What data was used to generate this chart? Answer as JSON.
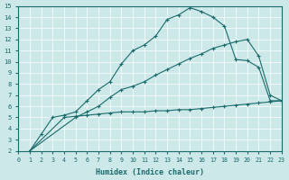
{
  "bg_color": "#cde8e8",
  "line_color": "#1a6b6b",
  "xlabel": "Humidex (Indice chaleur)",
  "xlim": [
    0,
    23
  ],
  "ylim": [
    2,
    15
  ],
  "xticks": [
    0,
    1,
    2,
    3,
    4,
    5,
    6,
    7,
    8,
    9,
    10,
    11,
    12,
    13,
    14,
    15,
    16,
    17,
    18,
    19,
    20,
    21,
    22,
    23
  ],
  "yticks": [
    2,
    3,
    4,
    5,
    6,
    7,
    8,
    9,
    10,
    11,
    12,
    13,
    14,
    15
  ],
  "line1_x": [
    1,
    2,
    3,
    4,
    5,
    6,
    7,
    8,
    9,
    10,
    11,
    12,
    13,
    14,
    15,
    16,
    17,
    18,
    19,
    20,
    21,
    22,
    23
  ],
  "line1_y": [
    2.0,
    3.5,
    5.0,
    5.2,
    5.5,
    6.5,
    7.5,
    8.2,
    9.8,
    11.0,
    11.5,
    12.3,
    13.8,
    14.2,
    14.85,
    14.5,
    14.0,
    13.2,
    10.2,
    10.1,
    9.5,
    6.5,
    6.5
  ],
  "line2_x": [
    1,
    5,
    6,
    7,
    8,
    9,
    10,
    11,
    12,
    13,
    14,
    15,
    16,
    17,
    18,
    19,
    20,
    21,
    22,
    23
  ],
  "line2_y": [
    2.0,
    5.0,
    5.5,
    6.0,
    6.8,
    7.5,
    7.8,
    8.2,
    8.8,
    9.3,
    9.8,
    10.3,
    10.7,
    11.2,
    11.5,
    11.8,
    12.0,
    10.5,
    7.0,
    6.5
  ],
  "line3_x": [
    1,
    4,
    5,
    6,
    7,
    8,
    9,
    10,
    11,
    12,
    13,
    14,
    15,
    16,
    17,
    18,
    19,
    20,
    21,
    22,
    23
  ],
  "line3_y": [
    2.0,
    5.0,
    5.1,
    5.2,
    5.3,
    5.4,
    5.5,
    5.5,
    5.5,
    5.6,
    5.6,
    5.7,
    5.7,
    5.8,
    5.9,
    6.0,
    6.1,
    6.2,
    6.3,
    6.4,
    6.5
  ]
}
